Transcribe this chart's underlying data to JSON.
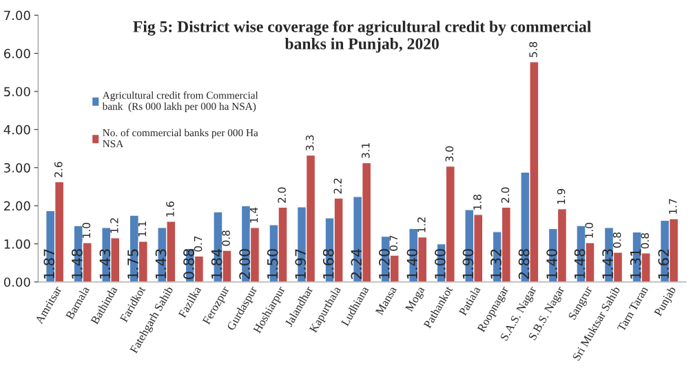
{
  "chart_data": {
    "type": "bar",
    "title": "Fig 5: District wise coverage for agricultural credit by commercial\nbanks in Punjab, 2020",
    "categories": [
      "Amritsar",
      "Barnala",
      "Bathinda",
      "Faridkot",
      "Fatehgarh Sahib",
      "Fazilka",
      "Ferozpur",
      "Gurdaspur",
      "Hoshiarpur",
      "Jalandhar",
      "Kapurthala",
      "Ludhiana",
      "Mansa",
      "Moga",
      "Pathankot",
      "Patiala",
      "Roopnagar",
      "S.A.S. Nagar",
      "S.B.S. Nagar",
      "Sangrur",
      "Sri Muktsar Sahib",
      "Tarn Taran",
      "Punjab"
    ],
    "series": [
      {
        "name": "Agricultural credit from Commercial\nbank  (Rs 000 lakh per 000 ha NSA)",
        "color": "#4f81bd",
        "values": [
          1.87,
          1.48,
          1.43,
          1.75,
          1.43,
          0.88,
          1.84,
          2.0,
          1.5,
          1.97,
          1.68,
          2.24,
          1.2,
          1.4,
          1.0,
          1.9,
          1.32,
          2.88,
          1.4,
          1.48,
          1.43,
          1.31,
          1.62
        ],
        "value_labels": [
          "1.87",
          "1.48",
          "1.43",
          "1.75",
          "1.43",
          "0.88",
          "1.84",
          "2.00",
          "1.50",
          "1.97",
          "1.68",
          "2.24",
          "1.20",
          "1.40",
          "1.00",
          "1.90",
          "1.32",
          "2.88",
          "1.40",
          "1.48",
          "1.43",
          "1.31",
          "1.62"
        ]
      },
      {
        "name": "No. of commercial banks per 000 Ha\nNSA",
        "color": "#c0504d",
        "values": [
          2.63,
          1.03,
          1.16,
          1.07,
          1.59,
          0.68,
          0.83,
          1.43,
          1.96,
          3.33,
          2.2,
          3.13,
          0.7,
          1.18,
          3.04,
          1.77,
          1.96,
          5.78,
          1.92,
          1.03,
          0.78,
          0.76,
          1.66
        ],
        "value_labels": [
          "2.6",
          "1.0",
          "1.2",
          "1.1",
          "1.6",
          "0.7",
          "0.8",
          "1.4",
          "2.0",
          "3.3",
          "2.2",
          "3.1",
          "0.7",
          "1.2",
          "3.0",
          "1.8",
          "2.0",
          "5.8",
          "1.9",
          "1.0",
          "0.8",
          "0.8",
          "1.7"
        ]
      }
    ],
    "ylim": [
      0,
      7
    ],
    "yticks": [
      {
        "value": 0,
        "label": "0.00"
      },
      {
        "value": 1,
        "label": "1.00"
      },
      {
        "value": 2,
        "label": "2.00"
      },
      {
        "value": 3,
        "label": "3.00"
      },
      {
        "value": 4,
        "label": "4.00"
      },
      {
        "value": 5,
        "label": "5.00"
      },
      {
        "value": 6,
        "label": "6.00"
      },
      {
        "value": 7,
        "label": "7.00"
      }
    ],
    "legend": "top left",
    "grid": false
  }
}
